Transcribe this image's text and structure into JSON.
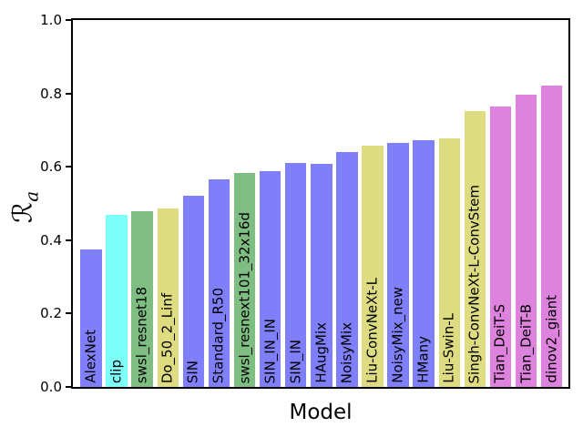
{
  "chart_data": {
    "type": "bar",
    "title": "",
    "xlabel": "Model",
    "ylabel": "ℛa",
    "ylabel_parts": {
      "main": "ℛ",
      "sub": "a"
    },
    "ylim": [
      0.0,
      1.0
    ],
    "yticks": [
      0.0,
      0.2,
      0.4,
      0.6,
      0.8,
      1.0
    ],
    "grid": false,
    "legend": "none",
    "bar_label_position": "inside-bottom-rotated-90",
    "categories": [
      "AlexNet",
      "clip",
      "swsl_resnet18",
      "Do_50_2_Linf",
      "SIN",
      "Standard_R50",
      "swsl_resnext101_32x16d",
      "SIN_IN_IN",
      "SIN_IN",
      "HAugMix",
      "NoisyMix",
      "Liu-ConvNeXt-L",
      "NoisyMix_new",
      "HMany",
      "Liu-Swin-L",
      "Singh-ConvNeXt-L-ConvStem",
      "Tian_DeiT-S",
      "Tian_DeiT-B",
      "dinov2_giant"
    ],
    "values": [
      0.375,
      0.47,
      0.478,
      0.487,
      0.522,
      0.567,
      0.584,
      0.588,
      0.61,
      0.608,
      0.641,
      0.657,
      0.664,
      0.672,
      0.678,
      0.752,
      0.764,
      0.796,
      0.822
    ],
    "bar_colors": [
      "#7f7ffa",
      "#7dfffa",
      "#7fbe82",
      "#dedc80",
      "#7f7ffa",
      "#7f7ffa",
      "#7fbe82",
      "#7f7ffa",
      "#7f7ffa",
      "#7f7ffa",
      "#7f7ffa",
      "#dedc80",
      "#7f7ffa",
      "#7f7ffa",
      "#dedc80",
      "#dedc80",
      "#dd82dd",
      "#dd82dd",
      "#dd82dd"
    ],
    "palette": {
      "blue": "#7f7ffa",
      "cyan": "#7dfffa",
      "green": "#7fbe82",
      "khaki": "#dedc80",
      "orchid": "#dd82dd"
    },
    "axis_color": "#000000",
    "background_color": "#ffffff"
  }
}
